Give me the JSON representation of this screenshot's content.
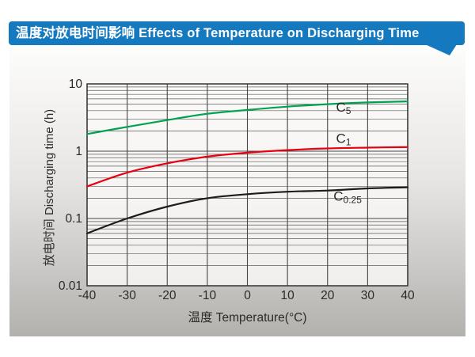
{
  "header": {
    "title": "温度对放电时间影响 Effects of Temperature on Discharging Time",
    "bg_color": "#1579bf"
  },
  "chart_data": {
    "type": "line",
    "title": "温度对放电时间影响 Effects of Temperature on Discharging Time",
    "xlabel": "温度  Temperature(°C)",
    "ylabel": "放电时间 Discharging time (h)",
    "x": [
      -40,
      -30,
      -20,
      -10,
      0,
      10,
      20,
      30,
      40
    ],
    "x_tick_labels": [
      "-40",
      "-30",
      "-20",
      "-10",
      "0",
      "10",
      "20",
      "30",
      "40"
    ],
    "xlim": [
      -40,
      40
    ],
    "y_scale": "log",
    "ylim": [
      0.01,
      10
    ],
    "y_tick_labels": [
      "10",
      "1",
      "0.1",
      "0.01"
    ],
    "grid": "major and minor log gridlines, dark gray, on",
    "legend_position": "labels beside curves",
    "series": [
      {
        "name": "C5",
        "label_main": "C",
        "label_sub": "5",
        "color": "#00a351",
        "values": [
          1.8,
          2.3,
          2.9,
          3.6,
          4.1,
          4.6,
          5.0,
          5.3,
          5.5
        ],
        "label_anchor": {
          "x": 24,
          "y": 3.85
        }
      },
      {
        "name": "C1",
        "label_main": "C",
        "label_sub": "1",
        "color": "#e60012",
        "values": [
          0.3,
          0.48,
          0.66,
          0.83,
          0.95,
          1.04,
          1.1,
          1.13,
          1.15
        ],
        "label_anchor": {
          "x": 24,
          "y": 1.33
        }
      },
      {
        "name": "C0.25",
        "label_main": "C",
        "label_sub": "0.25",
        "color": "#1c1c1c",
        "values": [
          0.06,
          0.1,
          0.15,
          0.2,
          0.23,
          0.25,
          0.26,
          0.28,
          0.29
        ],
        "label_anchor": {
          "x": 25,
          "y": 0.185
        }
      }
    ]
  }
}
